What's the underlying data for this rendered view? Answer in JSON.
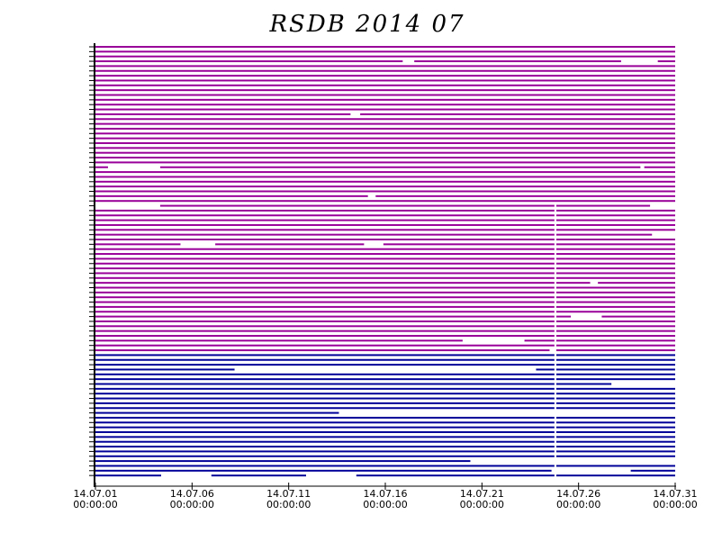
{
  "chart_data": {
    "type": "availability",
    "title": "RSDB  2014  07",
    "xlim": [
      0,
      30
    ],
    "xticks": [
      {
        "value": 0,
        "label": "14.07.01"
      },
      {
        "value": 5,
        "label": "14.07.06"
      },
      {
        "value": 10,
        "label": "14.07.11"
      },
      {
        "value": 15,
        "label": "14.07.16"
      },
      {
        "value": 20,
        "label": "14.07.21"
      },
      {
        "value": 25,
        "label": "14.07.26"
      },
      {
        "value": 30,
        "label": "14.07.31"
      }
    ],
    "xtick_times": [
      "00:00:00",
      "00:00:00",
      "00:00:00",
      "00:00:00",
      "00:00:00",
      "00:00:00",
      "00:00:00"
    ],
    "rows": [
      {
        "color": "#990099",
        "segments": [
          [
            0,
            30
          ]
        ]
      },
      {
        "color": "#990099",
        "segments": [
          [
            0,
            30
          ]
        ]
      },
      {
        "color": "#990099",
        "segments": [
          [
            0,
            30
          ]
        ]
      },
      {
        "color": "#990099",
        "segments": [
          [
            0,
            15.9
          ],
          [
            16.5,
            27.2
          ],
          [
            29.1,
            30
          ]
        ]
      },
      {
        "color": "#990099",
        "segments": [
          [
            0,
            30
          ]
        ]
      },
      {
        "color": "#990099",
        "segments": [
          [
            0,
            30
          ]
        ]
      },
      {
        "color": "#990099",
        "segments": [
          [
            0,
            30
          ]
        ]
      },
      {
        "color": "#990099",
        "segments": [
          [
            0,
            30
          ]
        ]
      },
      {
        "color": "#990099",
        "segments": [
          [
            0,
            30
          ]
        ]
      },
      {
        "color": "#990099",
        "segments": [
          [
            0,
            30
          ]
        ]
      },
      {
        "color": "#990099",
        "segments": [
          [
            0,
            30
          ]
        ]
      },
      {
        "color": "#990099",
        "segments": [
          [
            0,
            30
          ]
        ]
      },
      {
        "color": "#990099",
        "segments": [
          [
            0,
            30
          ]
        ]
      },
      {
        "color": "#990099",
        "segments": [
          [
            0,
            30
          ]
        ]
      },
      {
        "color": "#990099",
        "segments": [
          [
            0,
            13.2
          ],
          [
            13.7,
            30
          ]
        ]
      },
      {
        "color": "#990099",
        "segments": [
          [
            0,
            30
          ]
        ]
      },
      {
        "color": "#990099",
        "segments": [
          [
            0,
            30
          ]
        ]
      },
      {
        "color": "#990099",
        "segments": [
          [
            0,
            30
          ]
        ]
      },
      {
        "color": "#990099",
        "segments": [
          [
            0,
            30
          ]
        ]
      },
      {
        "color": "#990099",
        "segments": [
          [
            0,
            30
          ]
        ]
      },
      {
        "color": "#990099",
        "segments": [
          [
            0,
            30
          ]
        ]
      },
      {
        "color": "#990099",
        "segments": [
          [
            0,
            30
          ]
        ]
      },
      {
        "color": "#990099",
        "segments": [
          [
            0,
            30
          ]
        ]
      },
      {
        "color": "#990099",
        "segments": [
          [
            0,
            30
          ]
        ]
      },
      {
        "color": "#990099",
        "segments": [
          [
            0,
            30
          ]
        ]
      },
      {
        "color": "#990099",
        "segments": [
          [
            0,
            0.65
          ],
          [
            3.35,
            28.2
          ],
          [
            28.4,
            30
          ]
        ]
      },
      {
        "color": "#990099",
        "segments": [
          [
            0,
            30
          ]
        ]
      },
      {
        "color": "#990099",
        "segments": [
          [
            0,
            30
          ]
        ]
      },
      {
        "color": "#990099",
        "segments": [
          [
            0,
            30
          ]
        ]
      },
      {
        "color": "#990099",
        "segments": [
          [
            0,
            30
          ]
        ]
      },
      {
        "color": "#990099",
        "segments": [
          [
            0,
            30
          ]
        ]
      },
      {
        "color": "#990099",
        "segments": [
          [
            0,
            14.1
          ],
          [
            14.5,
            30
          ]
        ]
      },
      {
        "color": "#990099",
        "segments": [
          [
            0,
            30
          ]
        ]
      },
      {
        "color": "#990099",
        "segments": [
          [
            3.35,
            23.75
          ],
          [
            23.85,
            28.7
          ]
        ]
      },
      {
        "color": "#990099",
        "segments": [
          [
            0,
            23.75
          ],
          [
            23.85,
            30
          ]
        ]
      },
      {
        "color": "#990099",
        "segments": [
          [
            0,
            23.75
          ],
          [
            23.85,
            30
          ]
        ]
      },
      {
        "color": "#990099",
        "segments": [
          [
            0,
            23.75
          ],
          [
            23.85,
            30
          ]
        ]
      },
      {
        "color": "#990099",
        "segments": [
          [
            0,
            23.75
          ],
          [
            23.85,
            30
          ]
        ]
      },
      {
        "color": "#990099",
        "segments": [
          [
            0,
            23.75
          ],
          [
            23.85,
            30
          ]
        ]
      },
      {
        "color": "#990099",
        "segments": [
          [
            0,
            23.75
          ],
          [
            23.85,
            28.8
          ]
        ]
      },
      {
        "color": "#990099",
        "segments": [
          [
            0,
            23.75
          ],
          [
            23.85,
            30
          ]
        ]
      },
      {
        "color": "#990099",
        "segments": [
          [
            0,
            4.4
          ],
          [
            6.2,
            13.9
          ],
          [
            14.9,
            23.75
          ],
          [
            23.85,
            30
          ]
        ]
      },
      {
        "color": "#990099",
        "segments": [
          [
            0,
            23.75
          ],
          [
            23.85,
            30
          ]
        ]
      },
      {
        "color": "#990099",
        "segments": [
          [
            0,
            23.75
          ],
          [
            23.85,
            30
          ]
        ]
      },
      {
        "color": "#990099",
        "segments": [
          [
            0,
            23.75
          ],
          [
            23.85,
            30
          ]
        ]
      },
      {
        "color": "#990099",
        "segments": [
          [
            0,
            23.75
          ],
          [
            23.85,
            30
          ]
        ]
      },
      {
        "color": "#990099",
        "segments": [
          [
            0,
            23.75
          ],
          [
            23.85,
            30
          ]
        ]
      },
      {
        "color": "#990099",
        "segments": [
          [
            0,
            23.75
          ],
          [
            23.85,
            30
          ]
        ]
      },
      {
        "color": "#990099",
        "segments": [
          [
            0,
            23.75
          ],
          [
            23.85,
            30
          ]
        ]
      },
      {
        "color": "#990099",
        "segments": [
          [
            0,
            23.75
          ],
          [
            23.85,
            25.6
          ],
          [
            26,
            30
          ]
        ]
      },
      {
        "color": "#990099",
        "segments": [
          [
            0,
            23.75
          ],
          [
            23.85,
            30
          ]
        ]
      },
      {
        "color": "#990099",
        "segments": [
          [
            0,
            23.75
          ],
          [
            23.85,
            30
          ]
        ]
      },
      {
        "color": "#990099",
        "segments": [
          [
            0,
            23.75
          ],
          [
            23.85,
            30
          ]
        ]
      },
      {
        "color": "#990099",
        "segments": [
          [
            0,
            23.75
          ],
          [
            23.85,
            30
          ]
        ]
      },
      {
        "color": "#990099",
        "segments": [
          [
            0,
            23.75
          ],
          [
            23.85,
            30
          ]
        ]
      },
      {
        "color": "#990099",
        "segments": [
          [
            0,
            23.75
          ],
          [
            23.85,
            30
          ]
        ]
      },
      {
        "color": "#990099",
        "segments": [
          [
            0,
            23.75
          ],
          [
            23.85,
            24.6
          ],
          [
            26.2,
            30
          ]
        ]
      },
      {
        "color": "#990099",
        "segments": [
          [
            0,
            23.75
          ],
          [
            23.85,
            30
          ]
        ]
      },
      {
        "color": "#990099",
        "segments": [
          [
            0,
            23.75
          ],
          [
            23.85,
            30
          ]
        ]
      },
      {
        "color": "#990099",
        "segments": [
          [
            0,
            23.75
          ],
          [
            23.85,
            30
          ]
        ]
      },
      {
        "color": "#990099",
        "segments": [
          [
            0,
            23.75
          ],
          [
            23.85,
            30
          ]
        ]
      },
      {
        "color": "#990099",
        "segments": [
          [
            0,
            19
          ],
          [
            22.2,
            23.75
          ],
          [
            23.85,
            30
          ]
        ]
      },
      {
        "color": "#990099",
        "segments": [
          [
            0,
            23.75
          ],
          [
            23.85,
            30
          ]
        ]
      },
      {
        "color": "#990099",
        "segments": [
          [
            0,
            23.5
          ],
          [
            23.85,
            30
          ]
        ]
      },
      {
        "color": "#000099",
        "segments": [
          [
            0,
            23.75
          ],
          [
            23.85,
            30
          ]
        ]
      },
      {
        "color": "#000099",
        "segments": [
          [
            0,
            23.75
          ],
          [
            23.85,
            30
          ]
        ]
      },
      {
        "color": "#000099",
        "segments": [
          [
            0,
            23.75
          ],
          [
            23.85,
            30
          ]
        ]
      },
      {
        "color": "#000099",
        "segments": [
          [
            0,
            7.2
          ],
          [
            22.8,
            23.75
          ],
          [
            23.85,
            30
          ]
        ]
      },
      {
        "color": "#000099",
        "segments": [
          [
            0,
            23.75
          ],
          [
            23.85,
            30
          ]
        ]
      },
      {
        "color": "#000099",
        "segments": [
          [
            0,
            23.75
          ],
          [
            23.85,
            30
          ]
        ]
      },
      {
        "color": "#000099",
        "segments": [
          [
            0,
            23.75
          ],
          [
            23.85,
            26.7
          ]
        ]
      },
      {
        "color": "#000099",
        "segments": [
          [
            0,
            23.75
          ],
          [
            23.85,
            30
          ]
        ]
      },
      {
        "color": "#000099",
        "segments": [
          [
            0,
            23.75
          ],
          [
            23.85,
            30
          ]
        ]
      },
      {
        "color": "#000099",
        "segments": [
          [
            0,
            23.75
          ],
          [
            23.85,
            30
          ]
        ]
      },
      {
        "color": "#000099",
        "segments": [
          [
            0,
            23.75
          ],
          [
            23.85,
            30
          ]
        ]
      },
      {
        "color": "#000099",
        "segments": [
          [
            0,
            23.75
          ],
          [
            23.85,
            30
          ]
        ]
      },
      {
        "color": "#000099",
        "segments": [
          [
            0,
            12.6
          ]
        ]
      },
      {
        "color": "#000099",
        "segments": [
          [
            0,
            23.75
          ],
          [
            23.85,
            30
          ]
        ]
      },
      {
        "color": "#000099",
        "segments": [
          [
            0,
            23.75
          ],
          [
            23.85,
            30
          ]
        ]
      },
      {
        "color": "#000099",
        "segments": [
          [
            0,
            23.75
          ],
          [
            23.85,
            30
          ]
        ]
      },
      {
        "color": "#000099",
        "segments": [
          [
            0,
            23.75
          ],
          [
            23.85,
            30
          ]
        ]
      },
      {
        "color": "#000099",
        "segments": [
          [
            0,
            23.75
          ],
          [
            23.85,
            30
          ]
        ]
      },
      {
        "color": "#000099",
        "segments": [
          [
            0,
            23.75
          ],
          [
            23.85,
            30
          ]
        ]
      },
      {
        "color": "#000099",
        "segments": [
          [
            0,
            23.75
          ],
          [
            23.85,
            30
          ]
        ]
      },
      {
        "color": "#000099",
        "segments": [
          [
            0,
            23.75
          ],
          [
            23.85,
            30
          ]
        ]
      },
      {
        "color": "#000099",
        "segments": [
          [
            0,
            23.75
          ],
          [
            23.85,
            30
          ]
        ]
      },
      {
        "color": "#000099",
        "segments": [
          [
            0,
            19.4
          ]
        ]
      },
      {
        "color": "#000099",
        "segments": [
          [
            0,
            23.75
          ],
          [
            23.85,
            30
          ]
        ]
      },
      {
        "color": "#000099",
        "segments": [
          [
            0,
            23.6
          ],
          [
            27.7,
            30
          ]
        ]
      },
      {
        "color": "#000099",
        "segments": [
          [
            0,
            3.4
          ],
          [
            6,
            10.9
          ],
          [
            13.5,
            23.75
          ],
          [
            23.85,
            30
          ]
        ]
      }
    ]
  }
}
